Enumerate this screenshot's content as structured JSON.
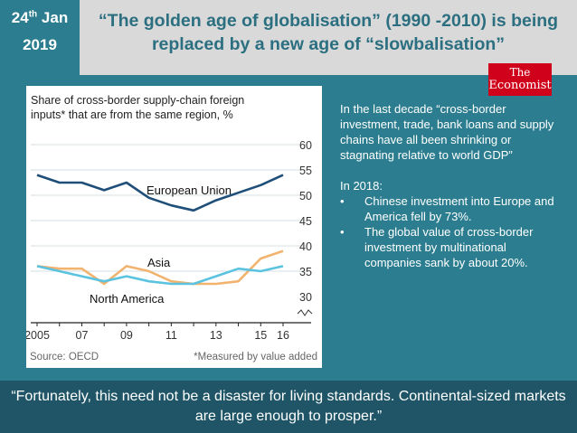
{
  "header": {
    "date_day": "24",
    "date_suffix": "th",
    "date_month": "Jan",
    "date_year": "2019",
    "title": "“The golden age of globalisation” (1990 -2010) is being replaced by a new age of “slowbalisation”"
  },
  "logo": {
    "line1": "The",
    "line2": "Economist"
  },
  "chart_data": {
    "type": "line",
    "title": "Share of cross-border supply-chain foreign inputs* that are from the same region, %",
    "source": "Source: OECD",
    "footnote": "*Measured by value added",
    "x": [
      2005,
      2006,
      2007,
      2008,
      2009,
      2010,
      2011,
      2012,
      2013,
      2014,
      2015,
      2016
    ],
    "xticks": [
      "2005",
      "07",
      "09",
      "11",
      "13",
      "15",
      "16"
    ],
    "xtick_values": [
      2005,
      2007,
      2009,
      2011,
      2013,
      2015,
      2016
    ],
    "ylim": [
      30,
      60
    ],
    "yticks": [
      30,
      35,
      40,
      45,
      50,
      55,
      60
    ],
    "series": [
      {
        "name": "European Union",
        "color": "#1f4e79",
        "values": [
          54,
          52.5,
          52.5,
          51,
          52.5,
          49.5,
          48,
          47,
          49,
          50.5,
          52,
          54
        ]
      },
      {
        "name": "Asia",
        "color": "#f2b36f",
        "values": [
          36,
          35.5,
          35.5,
          32.5,
          36,
          35,
          33,
          32.5,
          32.5,
          33,
          37.5,
          39
        ]
      },
      {
        "name": "North America",
        "color": "#5bc3e0",
        "values": [
          36,
          35,
          34,
          33,
          34,
          33,
          32.5,
          32.5,
          34,
          35.5,
          35,
          36
        ]
      }
    ]
  },
  "side": {
    "intro": "In the last decade “cross-border investment, trade, bank loans and supply chains have all been shrinking or stagnating relative to world GDP”",
    "heading": "In 2018:",
    "bullets": [
      "Chinese investment into Europe and America fell by 73%.",
      "The global value of cross-border investment by multinational companies sank by about 20%."
    ]
  },
  "footer": {
    "quote": "“Fortunately, this need not be a disaster for living standards. Continental-sized markets are large enough to prosper.”"
  }
}
